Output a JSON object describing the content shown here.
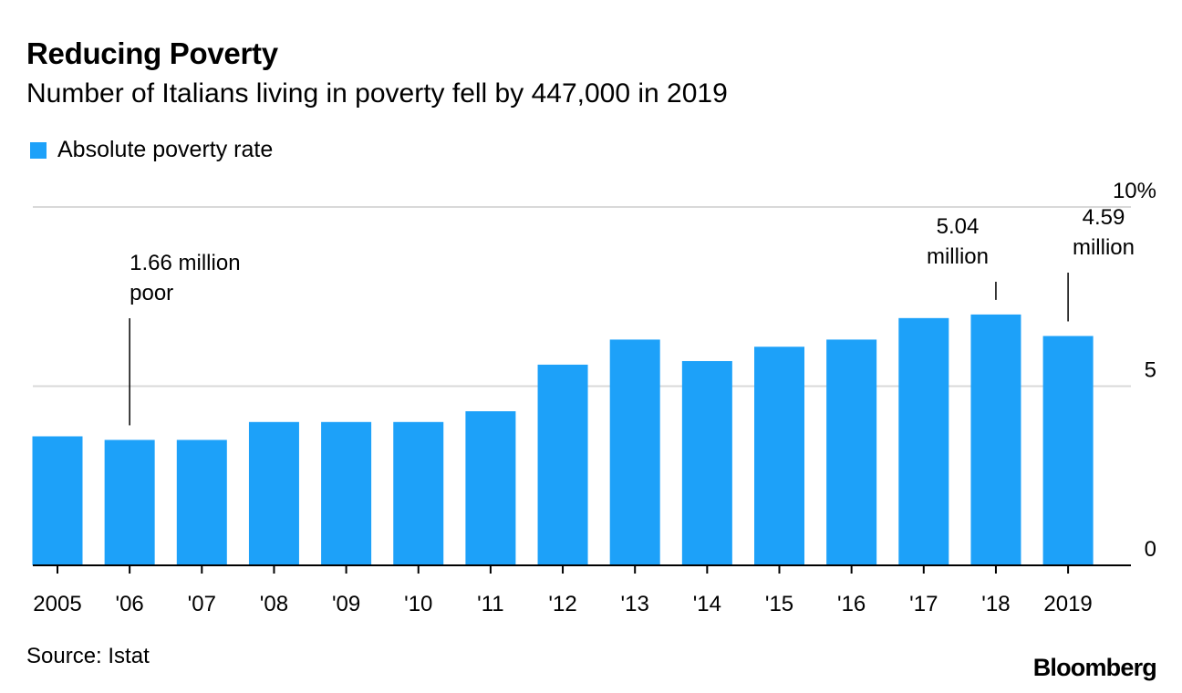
{
  "chart_data": {
    "type": "bar",
    "title": "Reducing Poverty",
    "subtitle": "Number of Italians living in poverty fell by 447,000 in 2019",
    "legend": [
      {
        "label": "Absolute poverty rate",
        "color": "#1da1f9"
      }
    ],
    "categories": [
      "2005",
      "'06",
      "'07",
      "'08",
      "'09",
      "'10",
      "'11",
      "'12",
      "'13",
      "'14",
      "'15",
      "'16",
      "'17",
      "'18",
      "2019"
    ],
    "values": [
      3.6,
      3.5,
      3.5,
      4.0,
      4.0,
      4.0,
      4.3,
      5.6,
      6.3,
      5.7,
      6.1,
      6.3,
      6.9,
      7.0,
      6.4
    ],
    "ylim": [
      0,
      10
    ],
    "yticks": [
      {
        "value": 0,
        "label": "0"
      },
      {
        "value": 5,
        "label": "5"
      },
      {
        "value": 10,
        "label": "10%"
      }
    ],
    "annotations": [
      {
        "index": 1,
        "lines": [
          "1.66 million",
          "poor"
        ]
      },
      {
        "index": 13,
        "lines": [
          "5.04",
          "million"
        ]
      },
      {
        "index": 14,
        "lines": [
          "4.59",
          "million"
        ]
      }
    ],
    "xlabel": "",
    "ylabel": "",
    "grid": true,
    "legend_position": "top-left"
  },
  "footer": {
    "source": "Source: Istat",
    "brand": "Bloomberg"
  }
}
